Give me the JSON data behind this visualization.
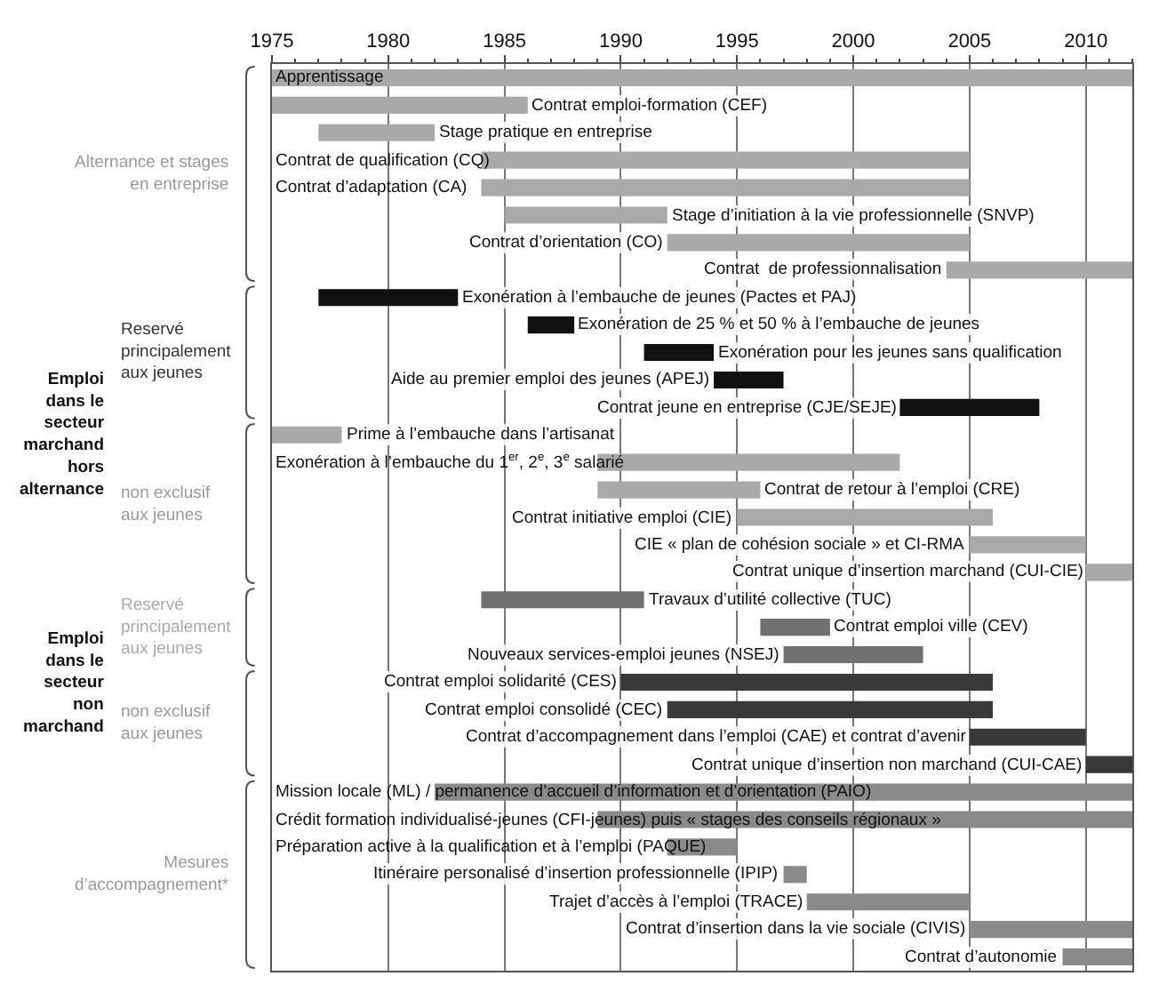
{
  "chart_data": {
    "type": "bar",
    "orientation": "horizontal",
    "categories": [
      "Apprentissage",
      "Contrat emploi-formation (CEF)",
      "Stage pratique en entreprise",
      "Contrat de qualification (CQ)",
      "Contrat d’adaptation (CA)",
      "Stage d’initiation à la vie professionnelle (SNVP)",
      "Contrat d’orientation (CO)",
      "Contrat  de professionnalisation",
      "Exonération à l’embauche de jeunes (Pactes et PAJ)",
      "Exonération de 25 % et 50 % à l’embauche de jeunes",
      "Exonération pour les jeunes sans qualification",
      "Aide au premier emploi des jeunes (APEJ)",
      "Contrat jeune en entreprise (CJE/SEJE)",
      "Prime à l’embauche dans l’artisanat",
      "Exonération à l’embauche du 1$^{er}$, 2$^{e}$, 3$^{e}$ salarié",
      "Contrat de retour à l’emploi (CRE)",
      "Contrat initiative emploi (CIE)",
      "CIE « plan de cohésion sociale » et CI-RMA",
      "Contrat unique d’insertion marchand (CUI-CIE)",
      "Travaux d’utilité collective (TUC)",
      "Contrat emploi ville (CEV)",
      "Nouveaux services-emploi jeunes (NSEJ)",
      "Contrat emploi solidarité (CES)",
      "Contrat emploi consolidé (CEC)",
      "Contrat d’accompagnement dans l’emploi (CAE) et contrat d’avenir",
      "Contrat unique d’insertion non marchand (CUI-CAE)",
      "Mission locale (ML) / permanence d’accueil d’information et d’orientation (PAIO)",
      "Crédit formation individualisé-jeunes (CFI-jeunes) puis « stages des conseils régionaux »",
      "Préparation active à la qualification et à l’emploi (PAQUE)",
      "Itinéraire personalisé d’insertion professionnelle (IPIP)",
      "Trajet d’accès à l’emploi (TRACE)",
      "Contrat d’insertion dans la vie sociale (CIVIS)",
      "Contrat d’autonomie"
    ],
    "base": [
      1975,
      1975,
      1977,
      1984,
      1984,
      1985,
      1992,
      2004,
      1977,
      1986,
      1991,
      1994,
      2002,
      1975,
      1989,
      1989,
      1995,
      2005,
      2010,
      1984,
      1996,
      1997,
      1990,
      1992,
      2005,
      2010,
      1982,
      1989,
      1992,
      1997,
      1998,
      2005,
      2009
    ],
    "values": [
      37,
      11,
      5,
      21,
      21,
      7,
      13,
      8,
      6,
      2,
      3,
      3,
      6,
      3,
      13,
      7,
      11,
      5,
      2,
      7,
      3,
      6,
      16,
      14,
      5,
      2,
      30,
      23,
      3,
      1,
      7,
      7,
      3
    ],
    "colors": [
      "#a9a9a9",
      "#a9a9a9",
      "#a9a9a9",
      "#a9a9a9",
      "#a9a9a9",
      "#a9a9a9",
      "#a9a9a9",
      "#a9a9a9",
      "#111111",
      "#111111",
      "#111111",
      "#111111",
      "#111111",
      "#a9a9a9",
      "#a9a9a9",
      "#a9a9a9",
      "#a9a9a9",
      "#a9a9a9",
      "#a9a9a9",
      "#707070",
      "#707070",
      "#707070",
      "#383838",
      "#383838",
      "#383838",
      "#383838",
      "#8a8a8a",
      "#8a8a8a",
      "#8a8a8a",
      "#8a8a8a",
      "#8a8a8a",
      "#8a8a8a",
      "#8a8a8a"
    ],
    "xlim": [
      1975,
      2012
    ],
    "xticks": [
      1975,
      1980,
      1985,
      1990,
      1995,
      2000,
      2005,
      2010
    ],
    "grid": "x",
    "annotations": [
      "Alternance et stages en entreprise",
      "Emploi dans le secteur marchand hors alternance",
      "Reservé principalement aux jeunes",
      "non exclusif aux jeunes",
      "Emploi dans le secteur non marchand",
      "Reservé principalement aux jeunes",
      "non exclusif aux jeunes",
      "Mesures d’accompagnement*"
    ]
  }
}
